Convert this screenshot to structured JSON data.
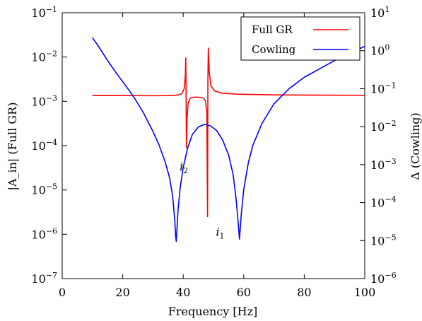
{
  "chart_data": {
    "type": "line",
    "xlabel": "Frequency [Hz]",
    "ylabel_left": "|A_in| (Full GR)",
    "ylabel_right": "Δ (Cowling)",
    "xlim": [
      0,
      100
    ],
    "x_ticks": [
      0,
      20,
      40,
      60,
      80,
      100
    ],
    "x_tick_labels": [
      "0",
      "20",
      "40",
      "60",
      "80",
      "100"
    ],
    "ylim_left": [
      1e-07,
      0.1
    ],
    "ylim_right": [
      1e-06,
      10
    ],
    "y_scale": "log",
    "y_ticks_left": [
      {
        "value": 1e-07,
        "base": "10",
        "exp": "−7"
      },
      {
        "value": 1e-06,
        "base": "10",
        "exp": "−6"
      },
      {
        "value": 1e-05,
        "base": "10",
        "exp": "−5"
      },
      {
        "value": 0.0001,
        "base": "10",
        "exp": "−4"
      },
      {
        "value": 0.001,
        "base": "10",
        "exp": "−3"
      },
      {
        "value": 0.01,
        "base": "10",
        "exp": "−2"
      },
      {
        "value": 0.1,
        "base": "10",
        "exp": "−1"
      }
    ],
    "y_ticks_right": [
      {
        "value": 1e-06,
        "base": "10",
        "exp": "−6"
      },
      {
        "value": 1e-05,
        "base": "10",
        "exp": "−5"
      },
      {
        "value": 0.0001,
        "base": "10",
        "exp": "−4"
      },
      {
        "value": 0.001,
        "base": "10",
        "exp": "−3"
      },
      {
        "value": 0.01,
        "base": "10",
        "exp": "−2"
      },
      {
        "value": 0.1,
        "base": "10",
        "exp": "−1"
      },
      {
        "value": 1,
        "base": "10",
        "exp": "0"
      },
      {
        "value": 10,
        "base": "10",
        "exp": "1"
      }
    ],
    "grid": false,
    "legend_position": "top-right",
    "series": [
      {
        "name": "Full GR",
        "color": "#ff0000",
        "axis": "left",
        "points": [
          [
            10,
            0.00135
          ],
          [
            20,
            0.00135
          ],
          [
            30,
            0.00134
          ],
          [
            35,
            0.00135
          ],
          [
            38,
            0.00138
          ],
          [
            39.5,
            0.00148
          ],
          [
            40.3,
            0.0019
          ],
          [
            40.7,
            0.0038
          ],
          [
            40.85,
            0.0095
          ],
          [
            40.95,
            0.0012
          ],
          [
            41.05,
            9e-05
          ],
          [
            41.25,
            0.0004
          ],
          [
            41.6,
            0.0009
          ],
          [
            42.3,
            0.00118
          ],
          [
            43.5,
            0.00124
          ],
          [
            45,
            0.00124
          ],
          [
            46.5,
            0.0012
          ],
          [
            47.3,
            0.00105
          ],
          [
            47.8,
            0.0006
          ],
          [
            48.05,
            2.5e-06
          ],
          [
            48.15,
            0.003
          ],
          [
            48.3,
            0.016
          ],
          [
            48.6,
            0.0045
          ],
          [
            49.2,
            0.0022
          ],
          [
            50.5,
            0.0017
          ],
          [
            53,
            0.00152
          ],
          [
            58,
            0.00145
          ],
          [
            70,
            0.0014
          ],
          [
            85,
            0.00138
          ],
          [
            100,
            0.00137
          ]
        ]
      },
      {
        "name": "Cowling",
        "color": "#0000ff",
        "axis": "right",
        "points": [
          [
            10,
            2.2
          ],
          [
            12,
            1.3
          ],
          [
            15,
            0.55
          ],
          [
            18,
            0.25
          ],
          [
            21,
            0.12
          ],
          [
            24,
            0.055
          ],
          [
            27,
            0.022
          ],
          [
            30,
            0.0075
          ],
          [
            32,
            0.0033
          ],
          [
            34,
            0.0012
          ],
          [
            35.5,
            0.00045
          ],
          [
            36.5,
            0.00015
          ],
          [
            37.2,
            3.5e-05
          ],
          [
            37.5,
            1.3e-05
          ],
          [
            37.7,
            9.5e-06
          ],
          [
            37.9,
            1.8e-05
          ],
          [
            38.3,
            6.5e-05
          ],
          [
            39,
            0.00025
          ],
          [
            40,
            0.00085
          ],
          [
            41.5,
            0.0028
          ],
          [
            43,
            0.0062
          ],
          [
            45,
            0.0098
          ],
          [
            47,
            0.0115
          ],
          [
            49,
            0.0105
          ],
          [
            51,
            0.008
          ],
          [
            53,
            0.0045
          ],
          [
            55,
            0.0018
          ],
          [
            56.5,
            0.00055
          ],
          [
            57.5,
            0.00012
          ],
          [
            58.2,
            2.8e-05
          ],
          [
            58.6,
            1.1e-05
          ],
          [
            58.8,
            1.8e-05
          ],
          [
            59.2,
            5e-05
          ],
          [
            60,
            0.00022
          ],
          [
            61.5,
            0.0011
          ],
          [
            63,
            0.0032
          ],
          [
            66,
            0.012
          ],
          [
            70,
            0.04
          ],
          [
            75,
            0.1
          ],
          [
            80,
            0.2
          ],
          [
            85,
            0.33
          ],
          [
            90,
            0.55
          ],
          [
            95,
            0.85
          ],
          [
            100,
            1.3
          ]
        ]
      }
    ],
    "annotations": [
      {
        "name": "annotation-i2",
        "letter": "i",
        "sub": "2",
        "x": 38.8,
        "y_left": 2.75e-05
      },
      {
        "name": "annotation-i1",
        "letter": "i",
        "sub": "1",
        "x": 50.8,
        "y_left": 9.2e-07
      }
    ]
  }
}
